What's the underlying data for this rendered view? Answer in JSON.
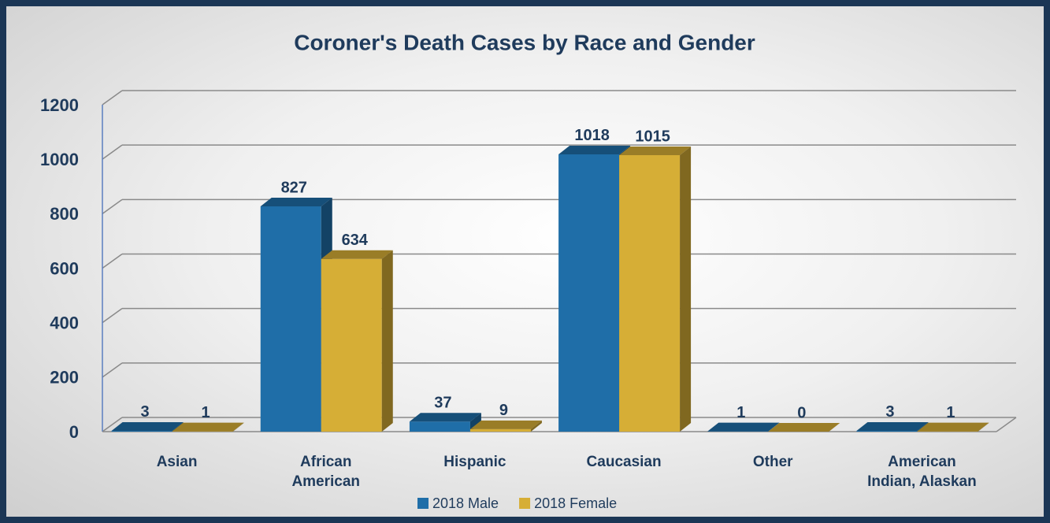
{
  "chart_data": {
    "type": "bar3d",
    "title": "Coroner's Death Cases by Race and Gender",
    "categories": [
      "Asian",
      "African American",
      "Hispanic",
      "Caucasian",
      "Other",
      "American Indian, Alaskan"
    ],
    "series": [
      {
        "name": "2018 Male",
        "color": "#1f6ea8",
        "values": [
          3,
          827,
          37,
          1018,
          1,
          3
        ]
      },
      {
        "name": "2018 Female",
        "color": "#d6ae36",
        "values": [
          1,
          634,
          9,
          1015,
          0,
          1
        ]
      }
    ],
    "ylim": [
      0,
      1200
    ],
    "yticks": [
      0,
      200,
      400,
      600,
      800,
      1000,
      1200
    ],
    "grid": true,
    "legend": "bottom"
  }
}
